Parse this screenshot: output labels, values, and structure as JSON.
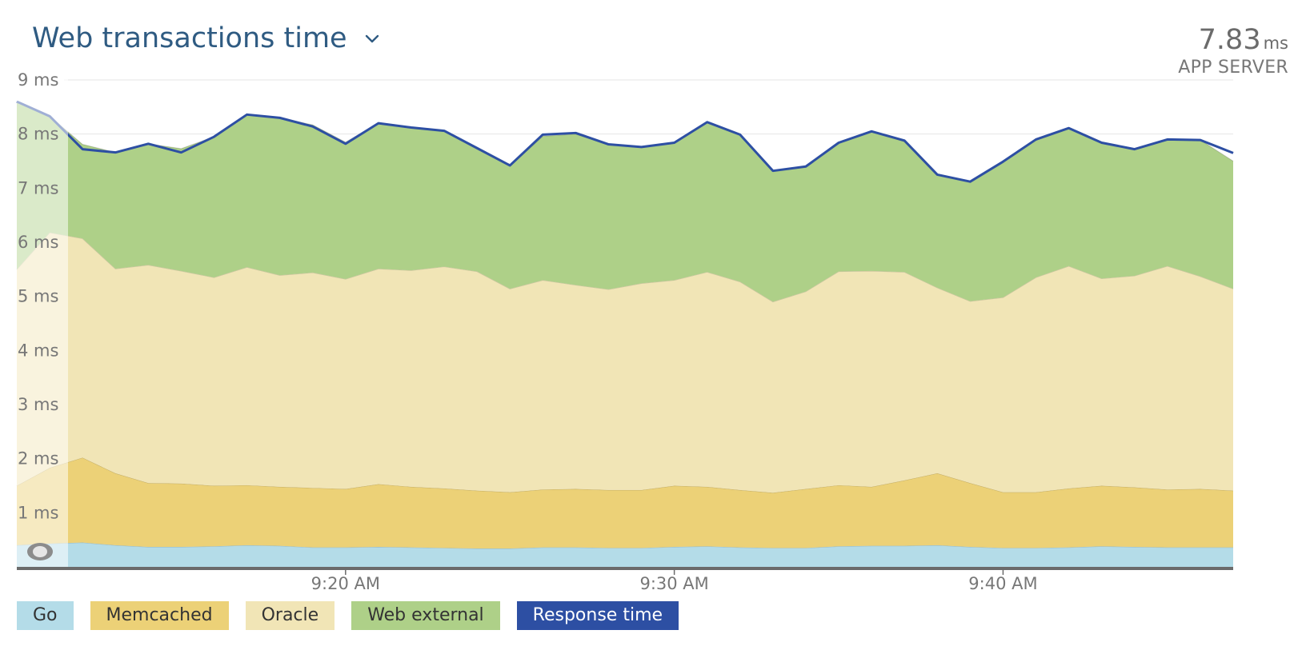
{
  "header": {
    "title": "Web transactions time",
    "summary_value": "7.83",
    "summary_unit": "ms",
    "summary_label": "APP SERVER"
  },
  "colors": {
    "go": "#b4dce8",
    "memcached": "#ecd177",
    "oracle": "#f1e5b6",
    "web_external": "#aed088",
    "response_time": "#2d4fa3",
    "grid": "#e6e6e6",
    "axis": "#6b6b6b"
  },
  "icons": {
    "title_dropdown": "chevron-down-icon",
    "range_handle": "drag-handle-icon"
  },
  "chart_data": {
    "type": "area",
    "stacked": true,
    "ylim": [
      0,
      9
    ],
    "y_ticks": [
      "9 ms",
      "8 ms",
      "7 ms",
      "6 ms",
      "5 ms",
      "4 ms",
      "3 ms",
      "2 ms",
      "1 ms"
    ],
    "y_tick_values": [
      9,
      8,
      7,
      6,
      5,
      4,
      3,
      2,
      1
    ],
    "x_ticks": [
      "9:20 AM",
      "9:30 AM",
      "9:40 AM"
    ],
    "x_tick_values": [
      "9:20",
      "9:30",
      "9:40"
    ],
    "x_time": [
      "9:10",
      "9:11",
      "9:12",
      "9:13",
      "9:14",
      "9:15",
      "9:16",
      "9:17",
      "9:18",
      "9:19",
      "9:20",
      "9:21",
      "9:22",
      "9:23",
      "9:24",
      "9:25",
      "9:26",
      "9:27",
      "9:28",
      "9:29",
      "9:30",
      "9:31",
      "9:32",
      "9:33",
      "9:34",
      "9:35",
      "9:36",
      "9:37",
      "9:38",
      "9:39",
      "9:40",
      "9:41",
      "9:42",
      "9:43",
      "9:44",
      "9:45",
      "9:46",
      "9:47"
    ],
    "grid": true,
    "legend_position": "bottom-left",
    "series": [
      {
        "name": "Go",
        "key": "go",
        "values": [
          0.4,
          0.43,
          0.45,
          0.4,
          0.37,
          0.37,
          0.38,
          0.4,
          0.39,
          0.36,
          0.36,
          0.37,
          0.36,
          0.35,
          0.34,
          0.34,
          0.36,
          0.36,
          0.35,
          0.35,
          0.37,
          0.38,
          0.36,
          0.35,
          0.35,
          0.38,
          0.39,
          0.39,
          0.4,
          0.37,
          0.35,
          0.35,
          0.36,
          0.38,
          0.37,
          0.36,
          0.36,
          0.36
        ]
      },
      {
        "name": "Memcached",
        "key": "memcached",
        "values": [
          1.1,
          1.4,
          1.57,
          1.33,
          1.18,
          1.17,
          1.12,
          1.11,
          1.09,
          1.1,
          1.08,
          1.16,
          1.12,
          1.1,
          1.07,
          1.04,
          1.07,
          1.08,
          1.07,
          1.07,
          1.13,
          1.1,
          1.06,
          1.02,
          1.09,
          1.13,
          1.09,
          1.21,
          1.33,
          1.18,
          1.03,
          1.03,
          1.09,
          1.12,
          1.1,
          1.07,
          1.08,
          1.05
        ]
      },
      {
        "name": "Oracle",
        "key": "oracle",
        "values": [
          4.0,
          4.35,
          4.05,
          3.78,
          4.03,
          3.93,
          3.85,
          4.03,
          3.91,
          3.98,
          3.88,
          3.98,
          4.0,
          4.1,
          4.05,
          3.76,
          3.87,
          3.77,
          3.71,
          3.82,
          3.8,
          3.97,
          3.85,
          3.53,
          3.65,
          3.95,
          3.99,
          3.85,
          3.43,
          3.36,
          3.6,
          3.97,
          4.11,
          3.83,
          3.91,
          4.13,
          3.93,
          3.73
        ]
      },
      {
        "name": "Web external",
        "key": "web_external",
        "values": [
          3.1,
          2.15,
          1.74,
          2.15,
          2.24,
          2.26,
          2.6,
          2.82,
          2.91,
          2.73,
          2.53,
          2.69,
          2.64,
          2.5,
          2.28,
          2.27,
          2.66,
          2.79,
          2.68,
          2.52,
          2.54,
          2.77,
          2.72,
          2.42,
          2.31,
          2.38,
          2.58,
          2.41,
          2.09,
          2.21,
          2.51,
          2.55,
          2.55,
          2.51,
          2.34,
          2.34,
          2.52,
          2.36
        ]
      },
      {
        "name": "Response time",
        "key": "response_time",
        "type": "line",
        "values": [
          8.6,
          8.33,
          7.72,
          7.66,
          7.82,
          7.66,
          7.95,
          8.36,
          8.3,
          8.14,
          7.82,
          8.2,
          8.12,
          8.06,
          7.74,
          7.42,
          7.99,
          8.02,
          7.81,
          7.76,
          7.84,
          8.22,
          7.99,
          7.32,
          7.4,
          7.84,
          8.05,
          7.88,
          7.25,
          7.12,
          7.49,
          7.9,
          8.11,
          7.84,
          7.72,
          7.9,
          7.89,
          7.65
        ]
      }
    ],
    "legend": [
      "Go",
      "Memcached",
      "Oracle",
      "Web external",
      "Response time"
    ]
  }
}
